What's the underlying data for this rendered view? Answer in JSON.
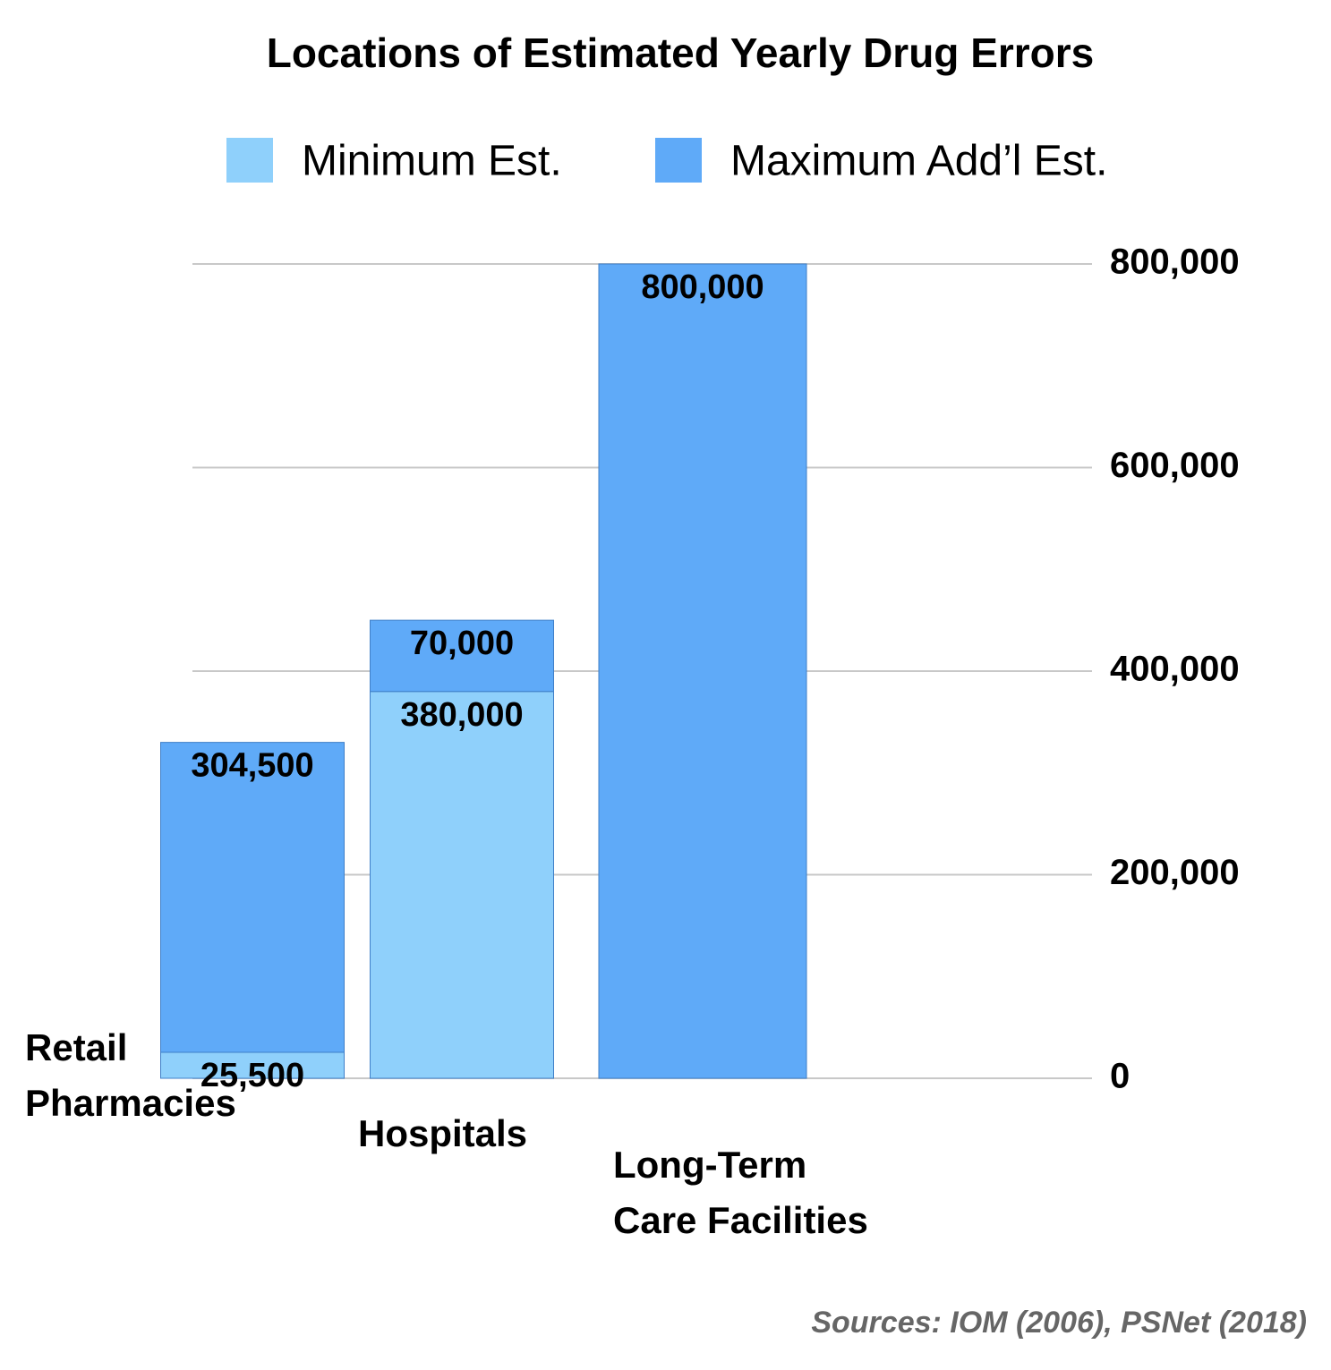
{
  "chart_data": {
    "type": "stacked-bar",
    "title": "Locations of Estimated Yearly Drug Errors",
    "categories": [
      "Retail\nPharmacies",
      "Hospitals",
      "Long-Term\nCare Facilities"
    ],
    "series": [
      {
        "name": "Minimum Est.",
        "color": "#8fd0fb",
        "values": [
          25500,
          380000,
          null
        ],
        "value_labels": [
          "25,500",
          "380,000",
          null
        ]
      },
      {
        "name": "Maximum Add’l Est.",
        "color": "#5faaf8",
        "values": [
          304500,
          70000,
          800000
        ],
        "value_labels": [
          "304,500",
          "70,000",
          "800,000"
        ]
      }
    ],
    "ylim": [
      0,
      800000
    ],
    "yticks": [
      0,
      {
        "value": 200000,
        "label": "200,000"
      },
      {
        "value": 400000,
        "label": "400,000"
      },
      {
        "value": 600000,
        "label": "600,000"
      },
      {
        "value": 800000,
        "label": "800,000"
      }
    ],
    "grid": true,
    "legend": "top",
    "source": "Sources: IOM (2006), PSNet (2018)"
  }
}
